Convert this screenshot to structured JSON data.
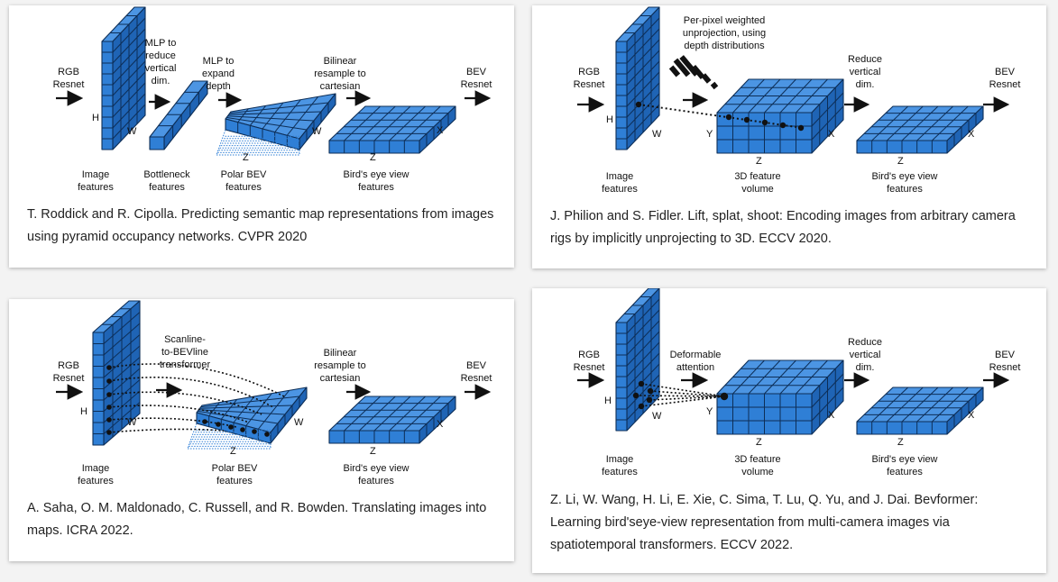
{
  "panels": [
    {
      "caption": "T. Roddick and R. Cipolla. Predicting semantic map representations from images using pyramid occupancy networks. CVPR 2020",
      "labels": {
        "rgb1": "RGB",
        "rgb2": "Resnet",
        "mlp_reduce1": "MLP to",
        "mlp_reduce2": "reduce",
        "mlp_reduce3": "vertical",
        "mlp_reduce4": "dim.",
        "mlp_expand1": "MLP to",
        "mlp_expand2": "expand",
        "mlp_expand3": "depth",
        "bilinear1": "Bilinear",
        "bilinear2": "resample to",
        "bilinear3": "cartesian",
        "bev1": "BEV",
        "bev2": "Resnet",
        "img1": "Image",
        "img2": "features",
        "bottle1": "Bottleneck",
        "bottle2": "features",
        "polar1": "Polar BEV",
        "polar2": "features",
        "bird1": "Bird's eye view",
        "bird2": "features",
        "axis_h": "H",
        "axis_w": "W",
        "axis_w2": "W",
        "axis_z": "Z",
        "axis_z2": "Z",
        "axis_x": "X"
      }
    },
    {
      "caption": "J. Philion and S. Fidler. Lift, splat, shoot: Encoding images from arbitrary camera rigs by implicitly unprojecting to 3D. ECCV 2020.",
      "labels": {
        "rgb1": "RGB",
        "rgb2": "Resnet",
        "unproj1": "Per-pixel weighted",
        "unproj2": "unprojection, using",
        "unproj3": "depth distributions",
        "reduce1": "Reduce",
        "reduce2": "vertical",
        "reduce3": "dim.",
        "bev1": "BEV",
        "bev2": "Resnet",
        "img1": "Image",
        "img2": "features",
        "vol1": "3D feature",
        "vol2": "volume",
        "bird1": "Bird's eye view",
        "bird2": "features",
        "axis_h": "H",
        "axis_w": "W",
        "axis_y": "Y",
        "axis_z": "Z",
        "axis_x": "X",
        "axis_z2": "Z",
        "axis_x2": "X"
      }
    },
    {
      "caption": "A. Saha, O. M. Maldonado, C. Russell, and R. Bowden. Translating images into maps. ICRA 2022.",
      "labels": {
        "rgb1": "RGB",
        "rgb2": "Resnet",
        "scan1": "Scanline-",
        "scan2": "to-BEVline",
        "scan3": "transformer",
        "bilinear1": "Bilinear",
        "bilinear2": "resample to",
        "bilinear3": "cartesian",
        "bev1": "BEV",
        "bev2": "Resnet",
        "img1": "Image",
        "img2": "features",
        "polar1": "Polar BEV",
        "polar2": "features",
        "bird1": "Bird's eye view",
        "bird2": "features",
        "axis_h": "H",
        "axis_w": "W",
        "axis_w2": "W",
        "axis_z": "Z",
        "axis_z2": "Z",
        "axis_x": "X"
      }
    },
    {
      "caption": "Z. Li, W. Wang, H. Li, E. Xie, C. Sima, T. Lu, Q. Yu, and J. Dai. Bevformer: Learning bird'seye-view representation from multi-camera images via spatiotemporal transformers. ECCV 2022.",
      "labels": {
        "rgb1": "RGB",
        "rgb2": "Resnet",
        "deform1": "Deformable",
        "deform2": "attention",
        "reduce1": "Reduce",
        "reduce2": "vertical",
        "reduce3": "dim.",
        "bev1": "BEV",
        "bev2": "Resnet",
        "img1": "Image",
        "img2": "features",
        "vol1": "3D feature",
        "vol2": "volume",
        "bird1": "Bird's eye view",
        "bird2": "features",
        "axis_h": "H",
        "axis_w": "W",
        "axis_y": "Y",
        "axis_z": "Z",
        "axis_x": "X",
        "axis_z2": "Z",
        "axis_x2": "X"
      }
    }
  ],
  "colors": {
    "front": "#2f7fd6",
    "top": "#4c95e3",
    "side": "#1f64b5",
    "grid": "#0d2e57"
  }
}
